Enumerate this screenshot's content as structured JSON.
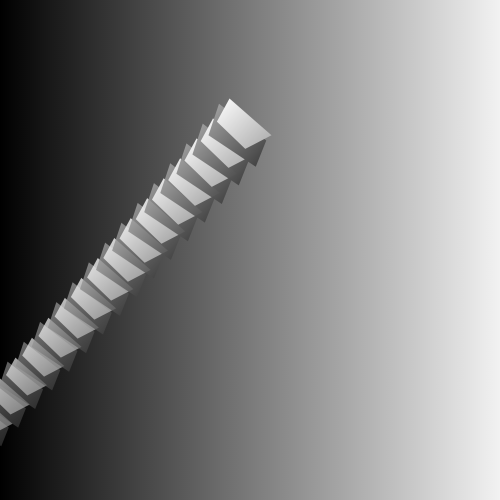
{
  "scene": {
    "background_gradient": [
      "#000000",
      "#7a7a7a",
      "#f2f2f2"
    ],
    "object": "twisted-folded-ribbon",
    "segment_count": 16,
    "highlight_color": "#ffffff",
    "mid_color": "#a8a8a8",
    "shadow_color": "#3a3a3a"
  }
}
